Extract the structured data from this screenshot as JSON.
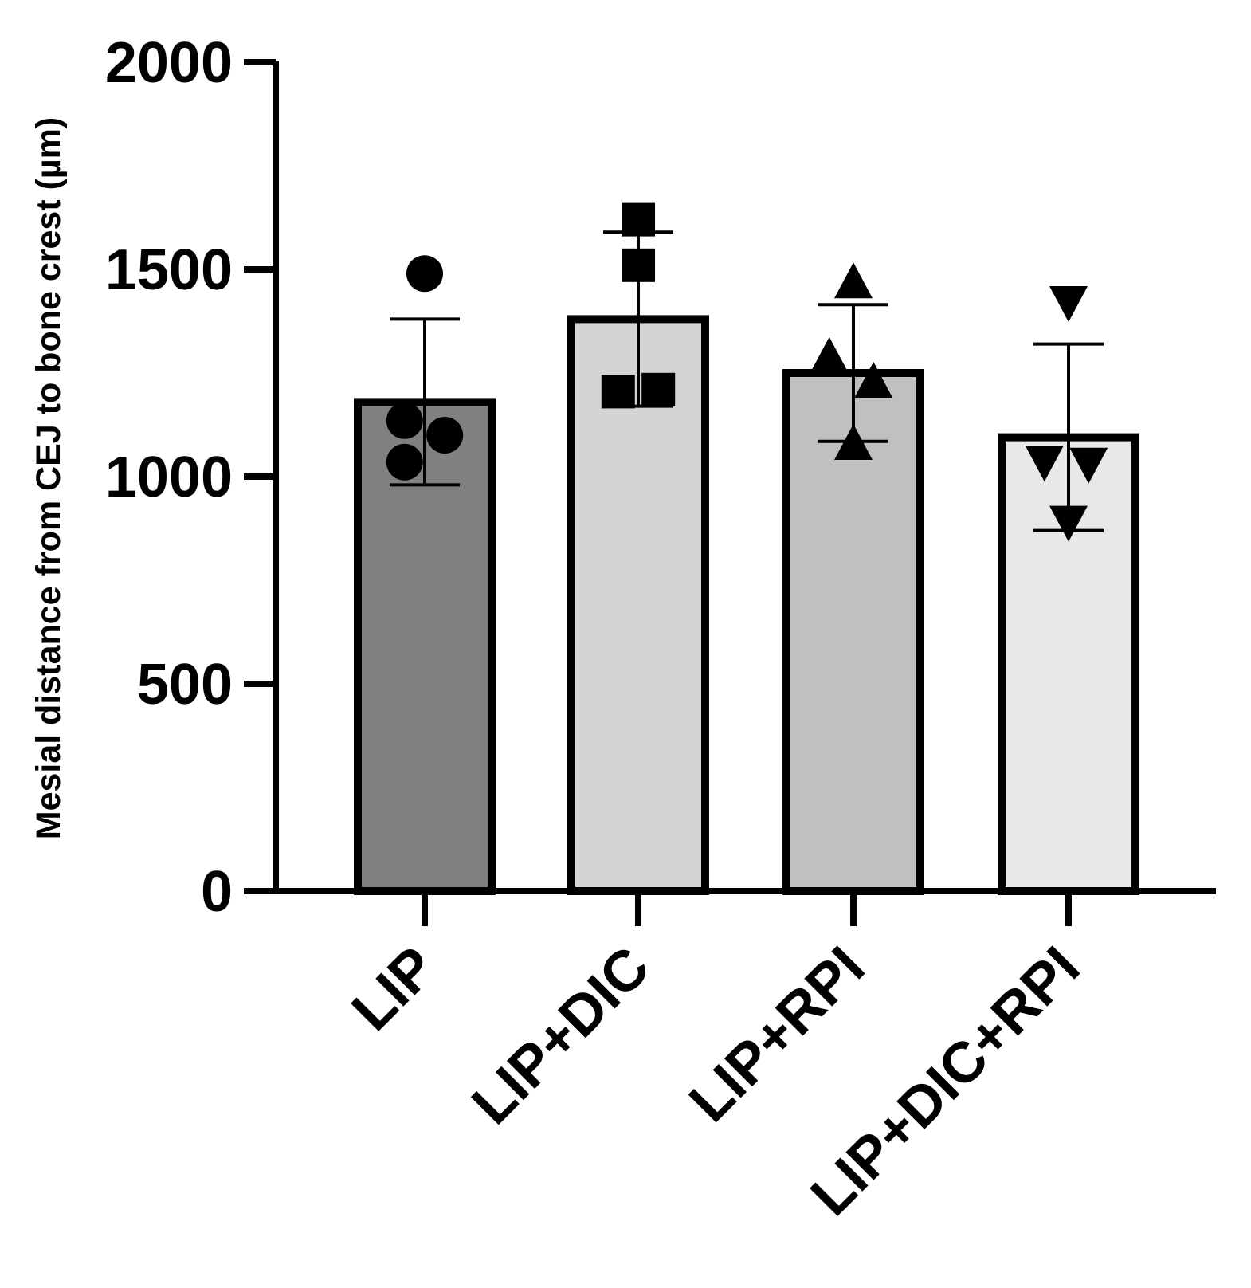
{
  "chart_data": {
    "type": "bar",
    "title": "",
    "xlabel": "",
    "ylabel": "Mesial distance from CEJ to bone crest (µm)",
    "ylim": [
      0,
      2000
    ],
    "yticks": [
      0,
      500,
      1000,
      1500,
      2000
    ],
    "ytick_labels": [
      "0",
      "500",
      "1000",
      "1500",
      "2000"
    ],
    "grid": false,
    "categories": [
      "LIP",
      "LIP+DIC",
      "LIP+RPI",
      "LIP+DIC+RPI"
    ],
    "values": [
      1180,
      1380,
      1250,
      1095
    ],
    "error_sd": [
      200,
      210,
      165,
      225
    ],
    "colors": [
      "#808080",
      "#d4d4d4",
      "#c0c0c0",
      "#e8e8e8"
    ],
    "markers": [
      "circle",
      "square",
      "triangle-up",
      "triangle-down"
    ],
    "points": [
      [
        {
          "x": 0,
          "y": 1490
        },
        {
          "x": -0.15,
          "y": 1135
        },
        {
          "x": 0.15,
          "y": 1100
        },
        {
          "x": -0.15,
          "y": 1035
        }
      ],
      [
        {
          "x": 0,
          "y": 1620
        },
        {
          "x": 0,
          "y": 1510
        },
        {
          "x": -0.15,
          "y": 1205
        },
        {
          "x": 0.15,
          "y": 1210
        }
      ],
      [
        {
          "x": 0,
          "y": 1465
        },
        {
          "x": -0.18,
          "y": 1285
        },
        {
          "x": 0.15,
          "y": 1225
        },
        {
          "x": 0,
          "y": 1075
        }
      ],
      [
        {
          "x": 0,
          "y": 1425
        },
        {
          "x": -0.18,
          "y": 1040
        },
        {
          "x": 0.15,
          "y": 1035
        },
        {
          "x": 0,
          "y": 895
        }
      ]
    ]
  }
}
